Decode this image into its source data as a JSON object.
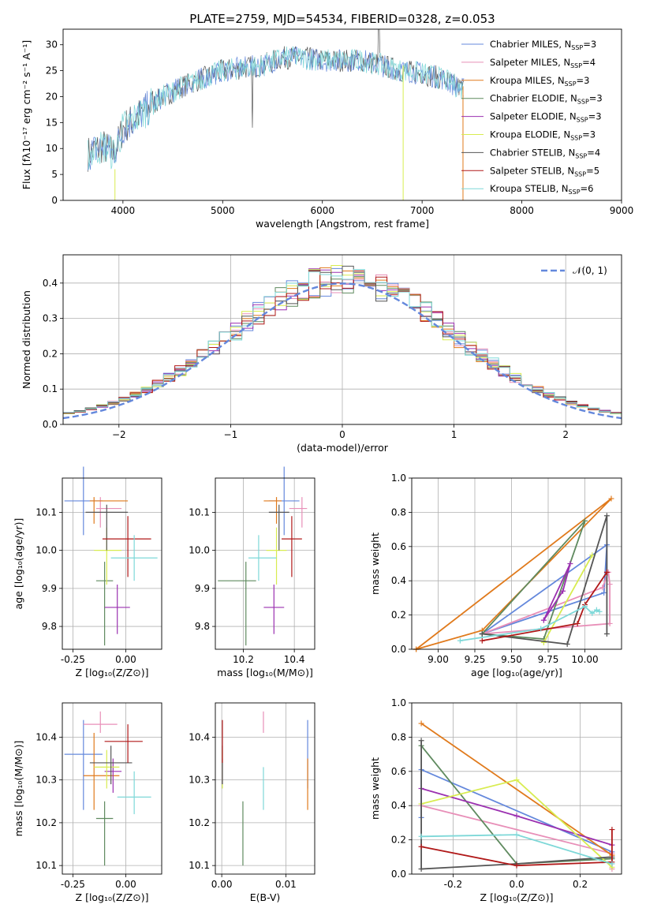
{
  "colors": [
    "#6488dc",
    "#e88fb8",
    "#e07a1c",
    "#5f8a5f",
    "#9b30b0",
    "#d8ec50",
    "#555555",
    "#b01818",
    "#7ed8d8"
  ],
  "spectrum": {
    "title": "PLATE=2759, MJD=54534, FIBERID=0328, z=0.053",
    "xlabel": "wavelength [Angstrom, rest frame]",
    "ylabel": "Flux [fλ10⁻¹⁷ erg cm⁻² s⁻¹ A⁻¹]",
    "xlim": [
      3400,
      9000
    ],
    "ylim": [
      0,
      33
    ],
    "xticks": [
      4000,
      5000,
      6000,
      7000,
      8000,
      9000
    ],
    "yticks": [
      0,
      5,
      10,
      15,
      20,
      25,
      30
    ],
    "legend": [
      {
        "label": "Chabrier MILES, N",
        "n": "3"
      },
      {
        "label": "Salpeter MILES, N",
        "n": "4"
      },
      {
        "label": "Kroupa MILES, N",
        "n": "3"
      },
      {
        "label": "Chabrier ELODIE, N",
        "n": "3"
      },
      {
        "label": "Salpeter ELODIE, N",
        "n": "3"
      },
      {
        "label": "Kroupa ELODIE, N",
        "n": "3"
      },
      {
        "label": "Chabrier STELIB, N",
        "n": "4"
      },
      {
        "label": "Salpeter STELIB, N",
        "n": "5"
      },
      {
        "label": "Kroupa STELIB, N",
        "n": "6"
      }
    ],
    "legend_sub": "SSP",
    "continuum": [
      [
        3650,
        9
      ],
      [
        3800,
        10.5
      ],
      [
        3900,
        9
      ],
      [
        3950,
        11
      ],
      [
        4000,
        14
      ],
      [
        4200,
        17
      ],
      [
        4400,
        20
      ],
      [
        4600,
        22
      ],
      [
        4800,
        23.5
      ],
      [
        5000,
        25
      ],
      [
        5200,
        25.5
      ],
      [
        5400,
        26
      ],
      [
        5600,
        27.5
      ],
      [
        5800,
        27.5
      ],
      [
        6000,
        27
      ],
      [
        6200,
        27
      ],
      [
        6400,
        27
      ],
      [
        6600,
        26
      ],
      [
        6800,
        25
      ],
      [
        7000,
        24.5
      ],
      [
        7200,
        23.5
      ],
      [
        7400,
        21.5
      ]
    ]
  },
  "hist": {
    "xlabel": "(data-model)/error",
    "ylabel": "Normed distribution",
    "legend": "𝒩(0, 1)",
    "xlim": [
      -2.5,
      2.5
    ],
    "ylim": [
      0,
      0.48
    ],
    "xticks": [
      -2,
      -1,
      0,
      1,
      2
    ],
    "yticks": [
      0.0,
      0.1,
      0.2,
      0.3,
      0.4
    ],
    "bins": 50
  },
  "panels": {
    "p3": {
      "xlabel": "Z [log₁₀(Z/Z⊙)]",
      "ylabel": "age  [log₁₀(age/yr)]",
      "xticks": [
        "-0.25",
        "0.00"
      ],
      "yticks": [
        "9.8",
        "9.9",
        "10.0",
        "10.1"
      ]
    },
    "p4": {
      "xlabel": "mass [log₁₀(M/M⊙)]",
      "xticks": [
        "10.2",
        "10.4"
      ],
      "yticks": [
        "9.8",
        "9.9",
        "10.0",
        "10.1"
      ]
    },
    "p5": {
      "xlabel": "age  [log₁₀(age/yr)]",
      "ylabel": "mass weight",
      "xticks": [
        "9.00",
        "9.25",
        "9.50",
        "9.75",
        "10.00"
      ],
      "yticks": [
        "0.0",
        "0.2",
        "0.4",
        "0.6",
        "0.8",
        "1.0"
      ]
    },
    "p6": {
      "xlabel": "Z [log₁₀(Z/Z⊙)]",
      "ylabel": "mass [log₁₀(M/M⊙)]",
      "xticks": [
        "-0.25",
        "0.00"
      ],
      "yticks": [
        "10.1",
        "10.2",
        "10.3",
        "10.4"
      ]
    },
    "p7": {
      "xlabel": "E(B-V)",
      "xticks": [
        "0.00",
        "0.01"
      ],
      "yticks": [
        "10.1",
        "10.2",
        "10.3",
        "10.4"
      ]
    },
    "p8": {
      "xlabel": "Z [log₁₀(Z/Z⊙)]",
      "ylabel": "mass weight",
      "xticks": [
        "-0.2",
        "0.0",
        "0.2"
      ],
      "yticks": [
        "0.0",
        "0.2",
        "0.4",
        "0.6",
        "0.8",
        "1.0"
      ]
    }
  },
  "chart_data": [
    {
      "type": "line",
      "title": "PLATE=2759, MJD=54534, FIBERID=0328, z=0.053",
      "xlim": [
        3400,
        9000
      ],
      "ylim": [
        0,
        33
      ],
      "series": [
        "Chabrier MILES",
        "Salpeter MILES",
        "Kroupa MILES",
        "Chabrier ELODIE",
        "Salpeter ELODIE",
        "Kroupa ELODIE",
        "Chabrier STELIB",
        "Salpeter STELIB",
        "Kroupa STELIB"
      ]
    },
    {
      "type": "bar",
      "xlabel": "(data-model)/error",
      "ylabel": "Normed distribution",
      "xlim": [
        -2.5,
        2.5
      ],
      "ylim": [
        0,
        0.48
      ]
    },
    {
      "type": "scatter",
      "id": "age_vs_Z",
      "points": [
        {
          "x": -0.2,
          "xerr": [
            0.09,
            0.09
          ],
          "y": 10.13,
          "yerr": [
            0.09,
            0.09
          ]
        },
        {
          "x": -0.12,
          "xerr": [
            0.02,
            0.1
          ],
          "y": 10.11,
          "yerr": [
            0.05,
            0.03
          ]
        },
        {
          "x": -0.15,
          "xerr": [
            0.02,
            0.16
          ],
          "y": 10.13,
          "yerr": [
            0.06,
            0.01
          ]
        },
        {
          "x": -0.1,
          "xerr": [
            0.04,
            0.04
          ],
          "y": 9.92,
          "yerr": [
            0.17,
            0.05
          ]
        },
        {
          "x": -0.04,
          "xerr": [
            0.06,
            0.06
          ],
          "y": 9.85,
          "yerr": [
            0.07,
            0.06
          ]
        },
        {
          "x": -0.09,
          "xerr": [
            0.06,
            0.07
          ],
          "y": 10.0,
          "yerr": [
            0.09,
            0.06
          ]
        },
        {
          "x": -0.09,
          "xerr": [
            0.1,
            0.1
          ],
          "y": 10.1,
          "yerr": [
            0.1,
            0.02
          ]
        },
        {
          "x": 0.01,
          "xerr": [
            0.12,
            0.11
          ],
          "y": 10.03,
          "yerr": [
            0.1,
            0.06
          ]
        },
        {
          "x": 0.04,
          "xerr": [
            0.11,
            0.11
          ],
          "y": 9.98,
          "yerr": [
            0.06,
            0.06
          ]
        }
      ]
    },
    {
      "type": "scatter",
      "id": "age_vs_mass",
      "points": [
        {
          "x": 10.36,
          "xerr": [
            0.06,
            0.06
          ],
          "y": 10.13,
          "yerr": [
            0.09,
            0.09
          ]
        },
        {
          "x": 10.43,
          "xerr": [
            0.05,
            0.02
          ],
          "y": 10.11,
          "yerr": [
            0.05,
            0.03
          ]
        },
        {
          "x": 10.33,
          "xerr": [
            0.05,
            0.02
          ],
          "y": 10.13,
          "yerr": [
            0.06,
            0.01
          ]
        },
        {
          "x": 10.21,
          "xerr": [
            0.11,
            0.04
          ],
          "y": 9.92,
          "yerr": [
            0.17,
            0.05
          ]
        },
        {
          "x": 10.32,
          "xerr": [
            0.04,
            0.04
          ],
          "y": 9.85,
          "yerr": [
            0.07,
            0.06
          ]
        },
        {
          "x": 10.33,
          "xerr": [
            0.04,
            0.04
          ],
          "y": 10.0,
          "yerr": [
            0.09,
            0.06
          ]
        },
        {
          "x": 10.34,
          "xerr": [
            0.04,
            0.04
          ],
          "y": 10.1,
          "yerr": [
            0.1,
            0.02
          ]
        },
        {
          "x": 10.39,
          "xerr": [
            0.04,
            0.04
          ],
          "y": 10.03,
          "yerr": [
            0.1,
            0.06
          ]
        },
        {
          "x": 10.26,
          "xerr": [
            0.04,
            0.07
          ],
          "y": 9.98,
          "yerr": [
            0.06,
            0.06
          ]
        }
      ]
    },
    {
      "type": "line",
      "id": "weight_vs_age",
      "xlim": [
        8.82,
        10.25
      ],
      "ylim": [
        0,
        1
      ],
      "series": [
        {
          "x": [
            9.3,
            10.15,
            10.13,
            9.3
          ],
          "y": [
            0.09,
            0.61,
            0.33,
            0.09
          ]
        },
        {
          "x": [
            9.3,
            10.12,
            10.16,
            10.17,
            10.17,
            9.3
          ],
          "y": [
            0.09,
            0.36,
            0.45,
            0.38,
            0.15,
            0.09
          ]
        },
        {
          "x": [
            8.85,
            10.18,
            9.3,
            8.85
          ],
          "y": [
            0.0,
            0.88,
            0.11,
            0.0
          ]
        },
        {
          "x": [
            9.3,
            10.0,
            9.72,
            9.3
          ],
          "y": [
            0.09,
            0.75,
            0.06,
            0.09
          ]
        },
        {
          "x": [
            9.72,
            9.9,
            9.85,
            9.72
          ],
          "y": [
            0.17,
            0.5,
            0.34,
            0.17
          ]
        },
        {
          "x": [
            9.72,
            10.05,
            9.72
          ],
          "y": [
            0.04,
            0.55,
            0.04
          ]
        },
        {
          "x": [
            9.3,
            9.88,
            10.15,
            10.15
          ],
          "y": [
            0.09,
            0.03,
            0.78,
            0.09
          ]
        },
        {
          "x": [
            9.3,
            9.95,
            10.0,
            10.15
          ],
          "y": [
            0.05,
            0.15,
            0.26,
            0.45
          ]
        },
        {
          "x": [
            9.15,
            9.7,
            10.0,
            10.05,
            10.08,
            10.1
          ],
          "y": [
            0.05,
            0.12,
            0.25,
            0.21,
            0.23,
            0.22
          ]
        }
      ]
    },
    {
      "type": "scatter",
      "id": "mass_vs_Z",
      "points": [
        {
          "x": -0.2,
          "xerr": [
            0.09,
            0.09
          ],
          "y": 10.36,
          "yerr": [
            0.13,
            0.08
          ]
        },
        {
          "x": -0.12,
          "xerr": [
            0.08,
            0.08
          ],
          "y": 10.43,
          "yerr": [
            0.02,
            0.03
          ]
        },
        {
          "x": -0.15,
          "xerr": [
            0.05,
            0.12
          ],
          "y": 10.31,
          "yerr": [
            0.08,
            0.1
          ]
        },
        {
          "x": -0.1,
          "xerr": [
            0.04,
            0.04
          ],
          "y": 10.21,
          "yerr": [
            0.11,
            0.04
          ]
        },
        {
          "x": -0.06,
          "xerr": [
            0.04,
            0.04
          ],
          "y": 10.32,
          "yerr": [
            0.05,
            0.03
          ]
        },
        {
          "x": -0.09,
          "xerr": [
            0.06,
            0.06
          ],
          "y": 10.33,
          "yerr": [
            0.05,
            0.04
          ]
        },
        {
          "x": -0.07,
          "xerr": [
            0.1,
            0.1
          ],
          "y": 10.34,
          "yerr": [
            0.05,
            0.04
          ]
        },
        {
          "x": 0.01,
          "xerr": [
            0.11,
            0.07
          ],
          "y": 10.39,
          "yerr": [
            0.05,
            0.04
          ]
        },
        {
          "x": 0.04,
          "xerr": [
            0.08,
            0.08
          ],
          "y": 10.26,
          "yerr": [
            0.04,
            0.06
          ]
        }
      ]
    },
    {
      "type": "scatter",
      "id": "mass_vs_EBV",
      "points": [
        {
          "x": 0.0134,
          "y": 10.36,
          "yerr": [
            0.08,
            0.08
          ]
        },
        {
          "x": 0.0065,
          "y": 10.43,
          "yerr": [
            0.02,
            0.03
          ]
        },
        {
          "x": 0.0134,
          "y": 10.3,
          "yerr": [
            0.07,
            0.05
          ]
        },
        {
          "x": 0.0033,
          "y": 10.21,
          "yerr": [
            0.11,
            0.04
          ]
        },
        {
          "x": 0.0001,
          "y": 10.32,
          "yerr": [
            0.03,
            0.03
          ]
        },
        {
          "x": 0.0001,
          "y": 10.33,
          "yerr": [
            0.05,
            0.04
          ]
        },
        {
          "x": 0.0001,
          "y": 10.34,
          "yerr": [
            0.05,
            0.04
          ]
        },
        {
          "x": 0.0001,
          "y": 10.39,
          "yerr": [
            0.05,
            0.05
          ]
        },
        {
          "x": 0.0065,
          "y": 10.27,
          "yerr": [
            0.04,
            0.06
          ]
        }
      ]
    },
    {
      "type": "line",
      "id": "weight_vs_Z",
      "xlim": [
        -0.33,
        0.33
      ],
      "ylim": [
        0,
        1
      ],
      "series": [
        {
          "x": [
            -0.3,
            -0.3,
            0.3,
            0.3
          ],
          "y": [
            0.33,
            0.61,
            0.13,
            0.09
          ]
        },
        {
          "x": [
            -0.3,
            0.3,
            0.3
          ],
          "y": [
            0.4,
            0.12,
            0.03
          ]
        },
        {
          "x": [
            -0.3,
            0.3
          ],
          "y": [
            0.88,
            0.11
          ]
        },
        {
          "x": [
            -0.3,
            0.0,
            0.3
          ],
          "y": [
            0.75,
            0.06,
            0.09
          ]
        },
        {
          "x": [
            -0.3,
            0.0,
            0.3
          ],
          "y": [
            0.5,
            0.34,
            0.17
          ]
        },
        {
          "x": [
            -0.3,
            0.0,
            0.3
          ],
          "y": [
            0.41,
            0.55,
            0.04
          ]
        },
        {
          "x": [
            -0.3,
            -0.3,
            0.0,
            0.3
          ],
          "y": [
            0.78,
            0.03,
            0.06,
            0.1
          ]
        },
        {
          "x": [
            -0.3,
            0.0,
            0.3,
            0.3
          ],
          "y": [
            0.16,
            0.05,
            0.07,
            0.26
          ]
        },
        {
          "x": [
            -0.3,
            0.0,
            0.3
          ],
          "y": [
            0.22,
            0.23,
            0.06
          ]
        }
      ]
    }
  ]
}
